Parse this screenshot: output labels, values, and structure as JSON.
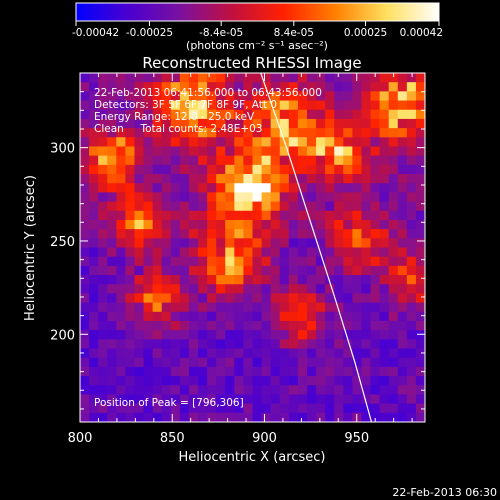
{
  "chart_data": {
    "type": "heatmap",
    "title": "Reconstructed RHESSI Image",
    "xlabel": "Heliocentric X (arcsec)",
    "ylabel": "Heliocentric Y (arcsec)",
    "xlim": [
      800,
      987
    ],
    "ylim": [
      153,
      340
    ],
    "x_ticks": [
      800,
      850,
      900,
      950
    ],
    "y_ticks": [
      200,
      250,
      300
    ],
    "colorbar": {
      "range": [
        -0.00042,
        0.00042
      ],
      "tick_values": [
        -0.00042,
        -0.00025,
        -8.4e-05,
        8.4e-05,
        0.00025,
        0.00042
      ],
      "tick_labels": [
        "-0.00042",
        "-0.00025",
        "-8.4e-05",
        "8.4e-05",
        "0.00025",
        "0.00042"
      ],
      "units": "(photons cm⁻² s⁻¹ asec⁻²)",
      "colors": [
        "#0000ff",
        "#4a00d0",
        "#7a10a0",
        "#c01040",
        "#ff2000",
        "#ff8000",
        "#ffe060",
        "#ffffff"
      ]
    },
    "annotations": [
      "22-Feb-2013 06:41:56.000 to 06:43:56.000",
      "Detectors: 3F 5F 6F 7F 8F 9F, Att 0",
      "Energy Range: 12.0 - 25.0 keV",
      "Clean     Total counts: 2.48E+03"
    ],
    "peak_label": "Position of Peak = [796,306]",
    "peak_position": [
      796,
      306
    ],
    "limb_curve": [
      [
        898,
        340
      ],
      [
        912,
        300
      ],
      [
        925,
        260
      ],
      [
        938,
        220
      ],
      [
        949,
        185
      ],
      [
        958,
        153
      ]
    ],
    "grid": false
  },
  "footer": {
    "timestamp": "22-Feb-2013 06:30"
  }
}
